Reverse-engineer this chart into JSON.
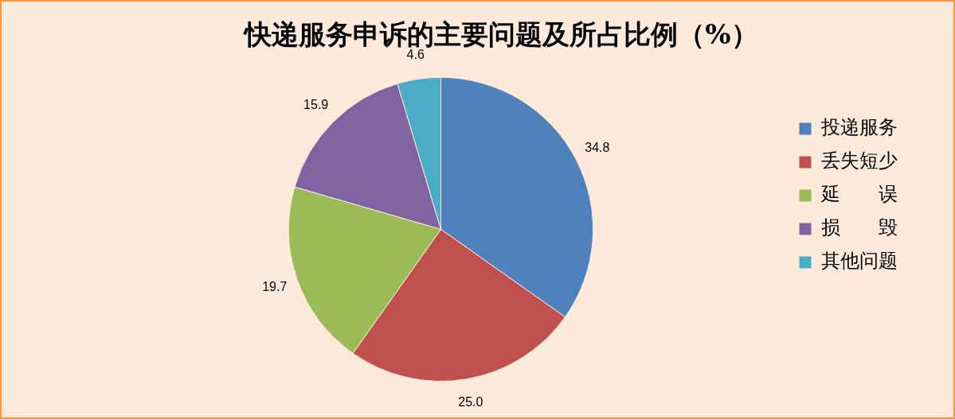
{
  "chart_data": {
    "type": "pie",
    "title": "快递服务申诉的主要问题及所占比例（%）",
    "categories": [
      "投递服务",
      "丢失短少",
      "延　　误",
      "损　　毁",
      "其他问题"
    ],
    "values": [
      34.8,
      25.0,
      19.7,
      15.9,
      4.6
    ],
    "colors": [
      "#4f81bd",
      "#c0504d",
      "#9bbb59",
      "#8064a2",
      "#4bacc6"
    ],
    "value_labels": [
      "34.8",
      "25.0",
      "19.7",
      "15.9",
      "4.6"
    ],
    "legend": "right"
  }
}
